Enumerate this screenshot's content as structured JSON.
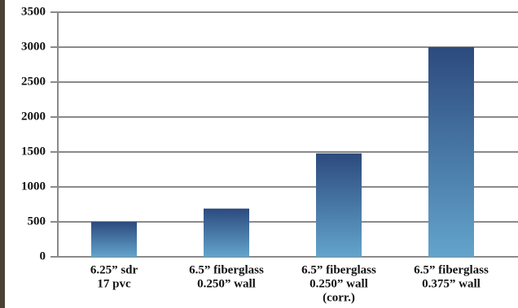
{
  "chart_data": {
    "type": "bar",
    "categories": [
      [
        "6.25” sdr",
        "17 pvc"
      ],
      [
        "6.5” fiberglass",
        "0.250” wall"
      ],
      [
        "6.5” fiberglass",
        "0.250” wall",
        "(corr.)"
      ],
      [
        "6.5” fiberglass",
        "0.375” wall"
      ]
    ],
    "values": [
      500,
      690,
      1480,
      3000
    ],
    "gradient": [
      "#2c4a7d",
      "#63a4cc"
    ],
    "ylim": [
      0,
      3500
    ],
    "yticks": [
      0,
      500,
      1000,
      1500,
      2000,
      2500,
      3000,
      3500
    ],
    "grid": true
  }
}
